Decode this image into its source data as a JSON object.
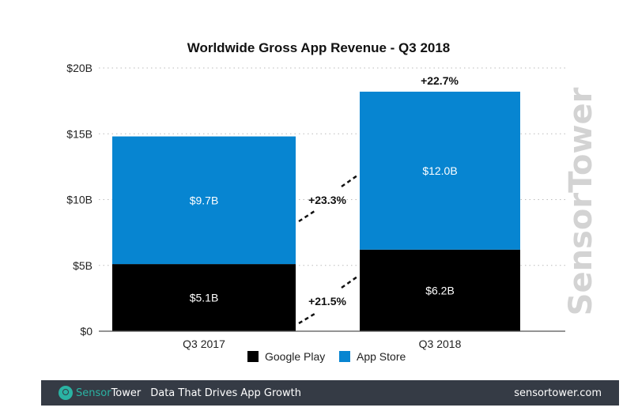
{
  "chart_data": {
    "type": "bar",
    "stacked": true,
    "title": "Worldwide Gross App Revenue - Q3 2018",
    "categories": [
      "Q3 2017",
      "Q3 2018"
    ],
    "series": [
      {
        "name": "Google Play",
        "values": [
          5.1,
          6.2
        ],
        "labels": [
          "$5.1B",
          "$6.2B"
        ],
        "color": "#000000"
      },
      {
        "name": "App Store",
        "values": [
          9.7,
          12.0
        ],
        "labels": [
          "$9.7B",
          "$12.0B"
        ],
        "color": "#0785d1"
      }
    ],
    "ylim": [
      0,
      20
    ],
    "yticks": [
      0,
      5,
      10,
      15,
      20
    ],
    "ytick_labels": [
      "$0",
      "$5B",
      "$10B",
      "$15B",
      "$20B"
    ],
    "grid": true,
    "legend": "bottom",
    "annotations": {
      "google_play_growth": "+21.5%",
      "app_store_growth": "+23.3%",
      "total_growth": "+22.7%"
    }
  },
  "watermark": "SensorTower",
  "footer": {
    "brand_part1": "Sensor",
    "brand_part2": "Tower",
    "tagline": "Data That Drives App Growth",
    "url": "sensortower.com"
  }
}
